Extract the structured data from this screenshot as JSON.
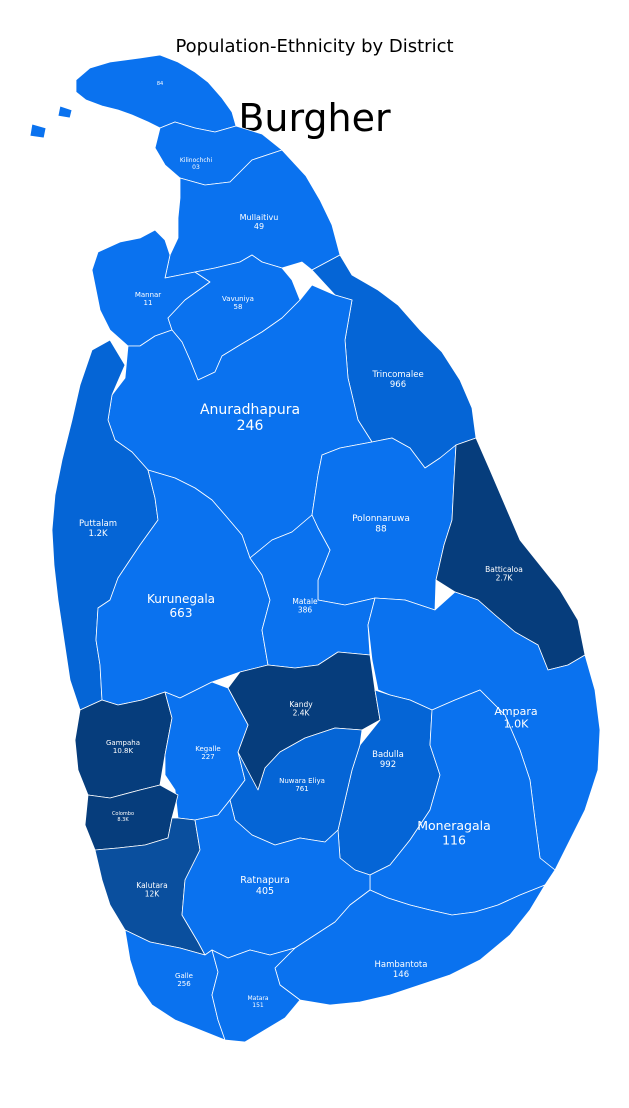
{
  "subtitle": "Population-Ethnicity by District",
  "title": "Burgher",
  "colors": {
    "background": "#ffffff",
    "shade_1": "#0a72ef",
    "shade_2": "#0565d6",
    "shade_3": "#0a4f9e",
    "shade_4": "#063d7c",
    "border": "#ffffff"
  },
  "districts": [
    {
      "id": "jaffna",
      "name": "",
      "value": "84",
      "shade": "shade_1"
    },
    {
      "id": "kilinochchi",
      "name": "Kilinochchi",
      "value": "03",
      "shade": "shade_1"
    },
    {
      "id": "mullaitivu",
      "name": "Mullaitivu",
      "value": "49",
      "shade": "shade_1"
    },
    {
      "id": "mannar",
      "name": "Mannar",
      "value": "11",
      "shade": "shade_1"
    },
    {
      "id": "vavuniya",
      "name": "Vavuniya",
      "value": "58",
      "shade": "shade_1"
    },
    {
      "id": "trincomalee",
      "name": "Trincomalee",
      "value": "966",
      "shade": "shade_2"
    },
    {
      "id": "anuradhapura",
      "name": "Anuradhapura",
      "value": "246",
      "shade": "shade_1"
    },
    {
      "id": "puttalam",
      "name": "Puttalam",
      "value": "1.2K",
      "shade": "shade_2"
    },
    {
      "id": "polonnaruwa",
      "name": "Polonnaruwa",
      "value": "88",
      "shade": "shade_1"
    },
    {
      "id": "batticaloa",
      "name": "Batticaloa",
      "value": "2.7K",
      "shade": "shade_4"
    },
    {
      "id": "kurunegala",
      "name": "Kurunegala",
      "value": "663",
      "shade": "shade_1"
    },
    {
      "id": "matale",
      "name": "Matale",
      "value": "386",
      "shade": "shade_1"
    },
    {
      "id": "kandy",
      "name": "Kandy",
      "value": "2.4K",
      "shade": "shade_4"
    },
    {
      "id": "ampara",
      "name": "Ampara",
      "value": "1.0K",
      "shade": "shade_1"
    },
    {
      "id": "gampaha",
      "name": "Gampaha",
      "value": "10.8K",
      "shade": "shade_4"
    },
    {
      "id": "kegalle",
      "name": "Kegalle",
      "value": "227",
      "shade": "shade_1"
    },
    {
      "id": "badulla",
      "name": "Badulla",
      "value": "992",
      "shade": "shade_2"
    },
    {
      "id": "nuwara_eliya",
      "name": "Nuwara Eliya",
      "value": "761",
      "shade": "shade_2"
    },
    {
      "id": "colombo",
      "name": "Colombo",
      "value": "8.3K",
      "shade": "shade_4"
    },
    {
      "id": "moneragala",
      "name": "Moneragala",
      "value": "116",
      "shade": "shade_1"
    },
    {
      "id": "kalutara",
      "name": "Kalutara",
      "value": "12K",
      "shade": "shade_3"
    },
    {
      "id": "ratnapura",
      "name": "Ratnapura",
      "value": "405",
      "shade": "shade_1"
    },
    {
      "id": "galle",
      "name": "Galle",
      "value": "256",
      "shade": "shade_1"
    },
    {
      "id": "hambantota",
      "name": "Hambantota",
      "value": "146",
      "shade": "shade_1"
    },
    {
      "id": "matara",
      "name": "Matara",
      "value": "151",
      "shade": "shade_1"
    }
  ]
}
